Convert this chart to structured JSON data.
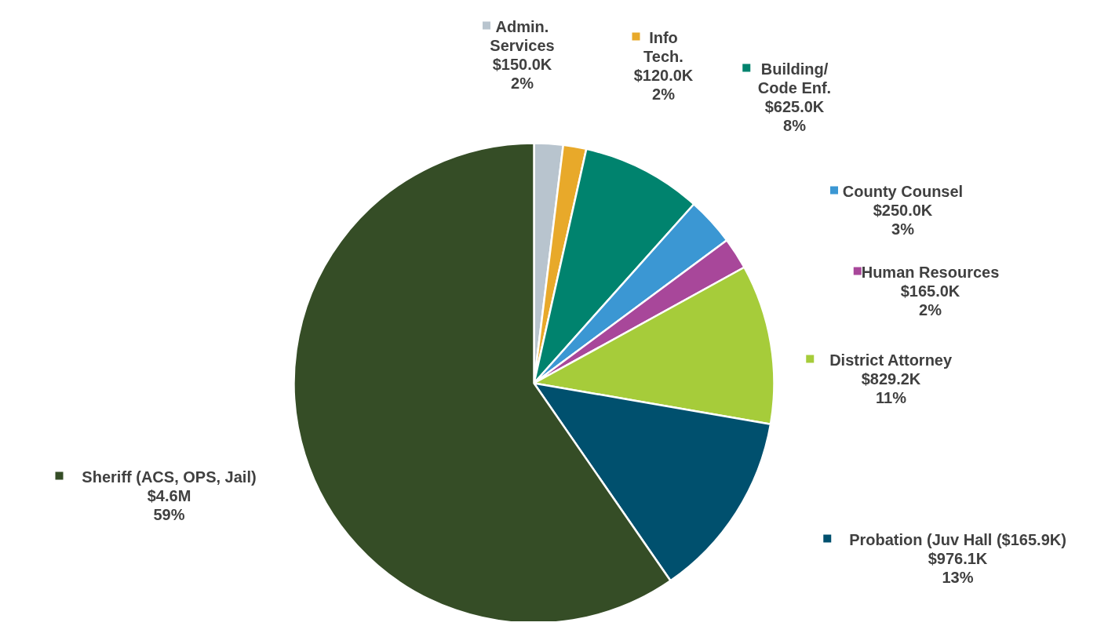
{
  "chart_data": {
    "type": "pie",
    "categories": [
      "Admin.\nServices",
      "Info\nTech.",
      "Building/\nCode Enf.",
      "County Counsel",
      "Human Resources",
      "District Attorney",
      "Probation (Juv Hall ($165.9K)",
      "Sheriff (ACS, OPS, Jail)"
    ],
    "values": [
      150000,
      120000,
      625000,
      250000,
      165000,
      829200,
      976100,
      4600000
    ],
    "value_labels": [
      "$150.0K\n2%",
      "$120.0K\n2%",
      "$625.0K\n8%",
      "$250.0K\n3%",
      "$165.0K\n2%",
      "$829.2K\n11%",
      "$976.1K\n13%",
      "$4.6M\n59%"
    ],
    "colors": [
      "#b8c4ce",
      "#e8a92a",
      "#00836e",
      "#3b97d3",
      "#a8479a",
      "#a6cc3a",
      "#00506e",
      "#354d26"
    ],
    "legend": "right"
  }
}
